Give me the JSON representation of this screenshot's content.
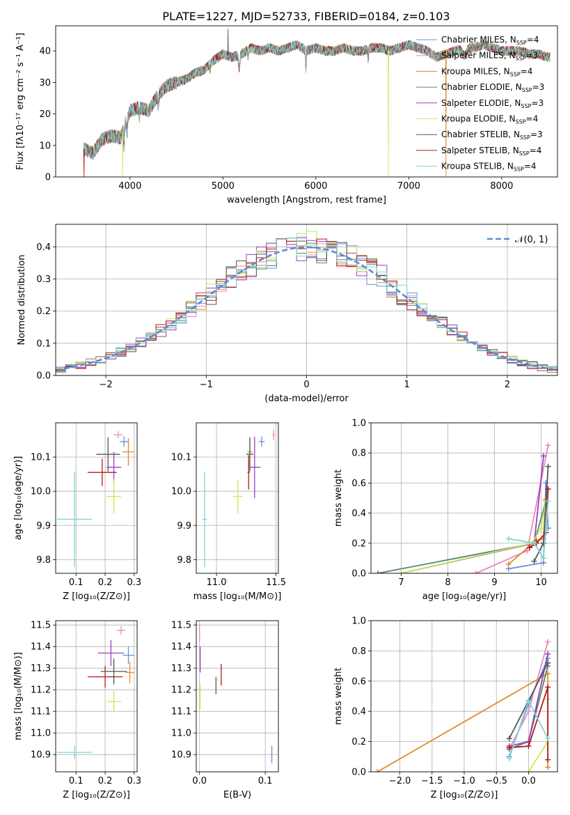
{
  "figure": {
    "title": "PLATE=1227, MJD=52733, FIBERID=0184, z=0.103"
  },
  "model_colors": [
    "#6a8fd8",
    "#e78ac3",
    "#e08a2a",
    "#55866a",
    "#9a3fbf",
    "#c8e85a",
    "#555555",
    "#b01a1a",
    "#7dd6d6"
  ],
  "chart_data": [
    {
      "id": "spectrum",
      "type": "line",
      "xlabel": "wavelength [Angstrom, rest frame]",
      "ylabel": "Flux [fλ10⁻¹⁷ erg cm⁻² s⁻¹ A⁻¹]",
      "xlim": [
        3200,
        8600
      ],
      "ylim": [
        0,
        48
      ],
      "xticks": [
        4000,
        5000,
        6000,
        7000,
        8000
      ],
      "yticks": [
        0,
        10,
        20,
        30,
        40
      ],
      "legend": "upper-right",
      "continuum_x": [
        3500,
        3600,
        3700,
        3800,
        3900,
        4000,
        4100,
        4200,
        4300,
        4400,
        4500,
        4600,
        4700,
        4800,
        4900,
        5000,
        5100,
        5200,
        5300,
        5400,
        5500,
        5600,
        5700,
        5800,
        5900,
        6000,
        6100,
        6200,
        6300,
        6400,
        6500,
        6600,
        6700,
        6800,
        6900,
        7000,
        7100,
        7200,
        7300,
        7400,
        7500,
        7600,
        7700,
        7800,
        7900,
        8000,
        8100,
        8200,
        8300,
        8400,
        8500
      ],
      "continuum_y": [
        9,
        7.5,
        12,
        13,
        12.5,
        21,
        22,
        21,
        26,
        29,
        30,
        31,
        33,
        34,
        37,
        39,
        38,
        39,
        41,
        40,
        41,
        40,
        41,
        42,
        40,
        41,
        40,
        40,
        41,
        40,
        40,
        41,
        41,
        40,
        41,
        42,
        41,
        40,
        38,
        39,
        40,
        41,
        41,
        42,
        41,
        40,
        40,
        40,
        39,
        39,
        38
      ],
      "series": [
        {
          "name": "Chabrier MILES, N_SSP=4",
          "label_main": "Chabrier MILES, N",
          "label_sub": "SSP",
          "label_tail": "=4"
        },
        {
          "name": "Salpeter MILES, N_SSP=3",
          "label_main": "Salpeter MILES, N",
          "label_sub": "SSP",
          "label_tail": "=3"
        },
        {
          "name": "Kroupa MILES, N_SSP=4",
          "label_main": "Kroupa MILES, N",
          "label_sub": "SSP",
          "label_tail": "=4"
        },
        {
          "name": "Chabrier ELODIE, N_SSP=3",
          "label_main": "Chabrier ELODIE, N",
          "label_sub": "SSP",
          "label_tail": "=3"
        },
        {
          "name": "Salpeter ELODIE, N_SSP=3",
          "label_main": "Salpeter ELODIE, N",
          "label_sub": "SSP",
          "label_tail": "=3"
        },
        {
          "name": "Kroupa ELODIE, N_SSP=4",
          "label_main": "Kroupa ELODIE, N",
          "label_sub": "SSP",
          "label_tail": "=4"
        },
        {
          "name": "Chabrier STELIB, N_SSP=3",
          "label_main": "Chabrier STELIB, N",
          "label_sub": "SSP",
          "label_tail": "=3"
        },
        {
          "name": "Salpeter STELIB, N_SSP=4",
          "label_main": "Salpeter STELIB, N",
          "label_sub": "SSP",
          "label_tail": "=4"
        },
        {
          "name": "Kroupa STELIB, N_SSP=4",
          "label_main": "Kroupa STELIB, N",
          "label_sub": "SSP",
          "label_tail": "=4"
        }
      ],
      "spikes": [
        {
          "x": 3505,
          "y": 0,
          "color_index": 7
        },
        {
          "x": 3920,
          "y": 0,
          "color_index": 5
        },
        {
          "x": 5055,
          "y": 47,
          "color_index": 6
        },
        {
          "x": 6780,
          "y": 0,
          "color_index": 5
        },
        {
          "x": 7400,
          "y": 0,
          "color_index": 2
        }
      ]
    },
    {
      "id": "residuals",
      "type": "histogram",
      "xlabel": "(data-model)/error",
      "ylabel": "Normed distribution",
      "xlim": [
        -2.5,
        2.5
      ],
      "ylim": [
        0,
        0.47
      ],
      "xticks": [
        -2,
        -1,
        0,
        1,
        2
      ],
      "xtick_labels": [
        "−2",
        "−1",
        "0",
        "1",
        "2"
      ],
      "yticks": [
        0,
        0.1,
        0.2,
        0.3,
        0.4
      ],
      "ytick_labels": [
        "0.0",
        "0.1",
        "0.2",
        "0.3",
        "0.4"
      ],
      "grid": true,
      "bin_width": 0.1,
      "reference_label": "𝒩(0, 1)",
      "legend": "upper-right"
    },
    {
      "id": "age-vs-metallicity",
      "type": "scatter",
      "xlabel": "Z [log₁₀(Z/Z⊙)]",
      "ylabel": "age  [log₁₀(age/yr)]",
      "xlim": [
        0.03,
        0.31
      ],
      "ylim": [
        9.76,
        10.2
      ],
      "xticks": [
        0.1,
        0.2,
        0.3
      ],
      "yticks": [
        9.8,
        9.9,
        10.0,
        10.1
      ],
      "ytick_labels": [
        "9.8",
        "9.9",
        "10.0",
        "10.1"
      ],
      "grid": true,
      "points": [
        {
          "x": 0.265,
          "y": 10.145,
          "xerr": 0.015,
          "yerr": 0.015,
          "color_index": 0
        },
        {
          "x": 0.245,
          "y": 10.165,
          "xerr": 0.015,
          "yerr": 0.01,
          "color_index": 1
        },
        {
          "x": 0.28,
          "y": 10.115,
          "xerr": 0.02,
          "yerr": 0.04,
          "color_index": 2
        },
        {
          "x": 0.21,
          "y": 10.108,
          "xerr": 0.04,
          "yerr": 0.05,
          "color_index": 6
        },
        {
          "x": 0.23,
          "y": 10.07,
          "xerr": 0.025,
          "yerr": 0.045,
          "color_index": 4
        },
        {
          "x": 0.19,
          "y": 10.055,
          "xerr": 0.05,
          "yerr": 0.04,
          "color_index": 7
        },
        {
          "x": 0.23,
          "y": 9.985,
          "xerr": 0.025,
          "yerr": 0.05,
          "color_index": 5
        },
        {
          "x": 0.095,
          "y": 9.918,
          "xerr": 0.06,
          "yerr": 0.14,
          "color_index": 8
        }
      ]
    },
    {
      "id": "age-vs-mass",
      "type": "scatter",
      "xlabel": "mass [log₁₀(M/M⊙)]",
      "ylabel": "",
      "xlim": [
        10.83,
        11.52
      ],
      "ylim": [
        9.76,
        10.2
      ],
      "xticks": [
        11.0,
        11.5
      ],
      "xtick_labels": [
        "11.0",
        "11.5"
      ],
      "yticks": [
        9.8,
        9.9,
        10.0,
        10.1
      ],
      "ytick_labels": [
        "9.8",
        "9.9",
        "10.0",
        "10.1"
      ],
      "grid": true,
      "points": [
        {
          "x": 11.38,
          "y": 10.145,
          "xerr": 0.025,
          "yerr": 0.015,
          "color_index": 0
        },
        {
          "x": 11.48,
          "y": 10.165,
          "xerr": 0.01,
          "yerr": 0.015,
          "color_index": 1
        },
        {
          "x": 11.28,
          "y": 10.115,
          "xerr": 0.02,
          "yerr": 0.04,
          "color_index": 2
        },
        {
          "x": 11.28,
          "y": 10.108,
          "xerr": 0.03,
          "yerr": 0.05,
          "color_index": 6
        },
        {
          "x": 11.32,
          "y": 10.07,
          "xerr": 0.05,
          "yerr": 0.09,
          "color_index": 4
        },
        {
          "x": 11.27,
          "y": 10.055,
          "xerr": 0.01,
          "yerr": 0.05,
          "color_index": 7
        },
        {
          "x": 11.18,
          "y": 9.985,
          "xerr": 0.04,
          "yerr": 0.05,
          "color_index": 5
        },
        {
          "x": 10.9,
          "y": 9.918,
          "xerr": 0.02,
          "yerr": 0.14,
          "color_index": 8
        }
      ]
    },
    {
      "id": "mass-weight-vs-age",
      "type": "line",
      "xlabel": "age  [log₁₀(age/yr)]",
      "ylabel": "mass weight",
      "xlim": [
        6.35,
        10.35
      ],
      "ylim": [
        0,
        1
      ],
      "xticks": [
        7,
        8,
        9,
        10
      ],
      "yticks": [
        0,
        0.2,
        0.4,
        0.6,
        0.8,
        1.0
      ],
      "ytick_labels": [
        "0.0",
        "0.2",
        "0.4",
        "0.6",
        "0.8",
        "1.0"
      ],
      "grid": true,
      "series": [
        {
          "color_index": 0,
          "x": [
            9.3,
            10.05,
            10.1,
            10.15
          ],
          "y": [
            0.03,
            0.07,
            0.6,
            0.3
          ]
        },
        {
          "color_index": 1,
          "x": [
            8.6,
            9.7,
            10.15
          ],
          "y": [
            0.0,
            0.15,
            0.85
          ]
        },
        {
          "color_index": 2,
          "x": [
            9.3,
            9.9,
            10.05,
            10.1
          ],
          "y": [
            0.06,
            0.22,
            0.23,
            0.49
          ]
        },
        {
          "color_index": 3,
          "x": [
            6.5,
            9.85,
            10.1
          ],
          "y": [
            0.0,
            0.2,
            0.48
          ]
        },
        {
          "color_index": 4,
          "x": [
            7.0,
            9.85,
            10.05
          ],
          "y": [
            0.0,
            0.2,
            0.78
          ]
        },
        {
          "color_index": 5,
          "x": [
            7.0,
            9.8,
            10.0,
            10.1
          ],
          "y": [
            0.0,
            0.2,
            0.3,
            0.48
          ]
        },
        {
          "color_index": 6,
          "x": [
            9.85,
            10.05,
            10.15
          ],
          "y": [
            0.08,
            0.2,
            0.71
          ]
        },
        {
          "color_index": 7,
          "x": [
            9.75,
            9.9,
            10.1,
            10.15
          ],
          "y": [
            0.17,
            0.2,
            0.27,
            0.56
          ]
        },
        {
          "color_index": 8,
          "x": [
            9.3,
            9.85,
            10.05,
            10.15
          ],
          "y": [
            0.23,
            0.2,
            0.1,
            0.48
          ]
        }
      ]
    },
    {
      "id": "mass-vs-metallicity",
      "type": "scatter",
      "xlabel": "Z [log₁₀(Z/Z⊙)]",
      "ylabel": "mass [log₁₀(M/M⊙)]",
      "xlim": [
        0.03,
        0.31
      ],
      "ylim": [
        10.82,
        11.52
      ],
      "xticks": [
        0.1,
        0.2,
        0.3
      ],
      "yticks": [
        10.9,
        11.0,
        11.1,
        11.2,
        11.3,
        11.4,
        11.5
      ],
      "ytick_labels": [
        "10.9",
        "11.0",
        "11.1",
        "11.2",
        "11.3",
        "11.4",
        "11.5"
      ],
      "grid": true,
      "points": [
        {
          "x": 0.28,
          "y": 11.36,
          "xerr": 0.02,
          "yerr": 0.04,
          "color_index": 0
        },
        {
          "x": 0.255,
          "y": 11.475,
          "xerr": 0.015,
          "yerr": 0.02,
          "color_index": 1
        },
        {
          "x": 0.285,
          "y": 11.28,
          "xerr": 0.015,
          "yerr": 0.05,
          "color_index": 2
        },
        {
          "x": 0.23,
          "y": 11.285,
          "xerr": 0.045,
          "yerr": 0.06,
          "color_index": 6
        },
        {
          "x": 0.22,
          "y": 11.37,
          "xerr": 0.045,
          "yerr": 0.06,
          "color_index": 4
        },
        {
          "x": 0.2,
          "y": 11.26,
          "xerr": 0.06,
          "yerr": 0.05,
          "color_index": 7
        },
        {
          "x": 0.23,
          "y": 11.145,
          "xerr": 0.025,
          "yerr": 0.05,
          "color_index": 5
        },
        {
          "x": 0.095,
          "y": 10.91,
          "xerr": 0.06,
          "yerr": 0.03,
          "color_index": 8
        }
      ]
    },
    {
      "id": "mass-vs-extinction",
      "type": "scatter",
      "xlabel": "E(B-V)",
      "ylabel": "",
      "xlim": [
        -0.005,
        0.12
      ],
      "ylim": [
        10.82,
        11.52
      ],
      "xticks": [
        0.0,
        0.1
      ],
      "xtick_labels": [
        "0.0",
        "0.1"
      ],
      "yticks": [
        10.9,
        11.0,
        11.1,
        11.2,
        11.3,
        11.4,
        11.5
      ],
      "ytick_labels": [
        "10.9",
        "11.0",
        "11.1",
        "11.2",
        "11.3",
        "11.4",
        "11.5"
      ],
      "grid": true,
      "points": [
        {
          "x": 0.11,
          "y": 10.9,
          "xerr": 0,
          "yerr": 0.04,
          "color_index": 0
        },
        {
          "x": 0.0,
          "y": 11.46,
          "xerr": 0,
          "yerr": 0.04,
          "color_index": 1
        },
        {
          "x": 0.033,
          "y": 11.27,
          "xerr": 0,
          "yerr": 0.05,
          "color_index": 7
        },
        {
          "x": 0.025,
          "y": 11.22,
          "xerr": 0,
          "yerr": 0.04,
          "color_index": 6
        },
        {
          "x": 0.001,
          "y": 11.34,
          "xerr": 0,
          "yerr": 0.06,
          "color_index": 4
        },
        {
          "x": 0.001,
          "y": 11.17,
          "xerr": 0,
          "yerr": 0.06,
          "color_index": 5
        }
      ]
    },
    {
      "id": "mass-weight-vs-metallicity",
      "type": "line",
      "xlabel": "Z [log₁₀(Z/Z⊙)]",
      "ylabel": "mass weight",
      "xlim": [
        -2.45,
        0.45
      ],
      "ylim": [
        0,
        1
      ],
      "xticks": [
        -2.0,
        -1.5,
        -1.0,
        -0.5,
        0.0
      ],
      "xtick_labels": [
        "−2.0",
        "−1.5",
        "−1.0",
        "−0.5",
        "0.0"
      ],
      "yticks": [
        0,
        0.2,
        0.4,
        0.6,
        0.8,
        1.0
      ],
      "ytick_labels": [
        "0.0",
        "0.2",
        "0.4",
        "0.6",
        "0.8",
        "1.0"
      ],
      "grid": true,
      "series": [
        {
          "color_index": 0,
          "x": [
            -0.3,
            0.0,
            0.3
          ],
          "y": [
            0.1,
            0.45,
            0.75
          ]
        },
        {
          "color_index": 1,
          "x": [
            -0.3,
            0.0,
            0.3
          ],
          "y": [
            0.15,
            0.4,
            0.86
          ]
        },
        {
          "color_index": 2,
          "x": [
            -2.35,
            0.3,
            0.3
          ],
          "y": [
            0.0,
            0.65,
            0.03
          ]
        },
        {
          "color_index": 3,
          "x": [
            -0.3,
            0.0,
            0.3
          ],
          "y": [
            0.15,
            0.2,
            0.7
          ]
        },
        {
          "color_index": 4,
          "x": [
            -0.3,
            0.0,
            0.3
          ],
          "y": [
            0.17,
            0.2,
            0.78
          ]
        },
        {
          "color_index": 5,
          "x": [
            0.0,
            0.3,
            0.3
          ],
          "y": [
            0.0,
            0.2,
            0.48
          ]
        },
        {
          "color_index": 6,
          "x": [
            -0.3,
            0.0,
            0.3
          ],
          "y": [
            0.22,
            0.47,
            0.72
          ]
        },
        {
          "color_index": 7,
          "x": [
            -0.3,
            0.0,
            0.3,
            0.3
          ],
          "y": [
            0.16,
            0.17,
            0.56,
            0.08
          ]
        },
        {
          "color_index": 8,
          "x": [
            -0.3,
            0.0,
            0.3
          ],
          "y": [
            0.09,
            0.47,
            0.22
          ]
        }
      ]
    }
  ]
}
